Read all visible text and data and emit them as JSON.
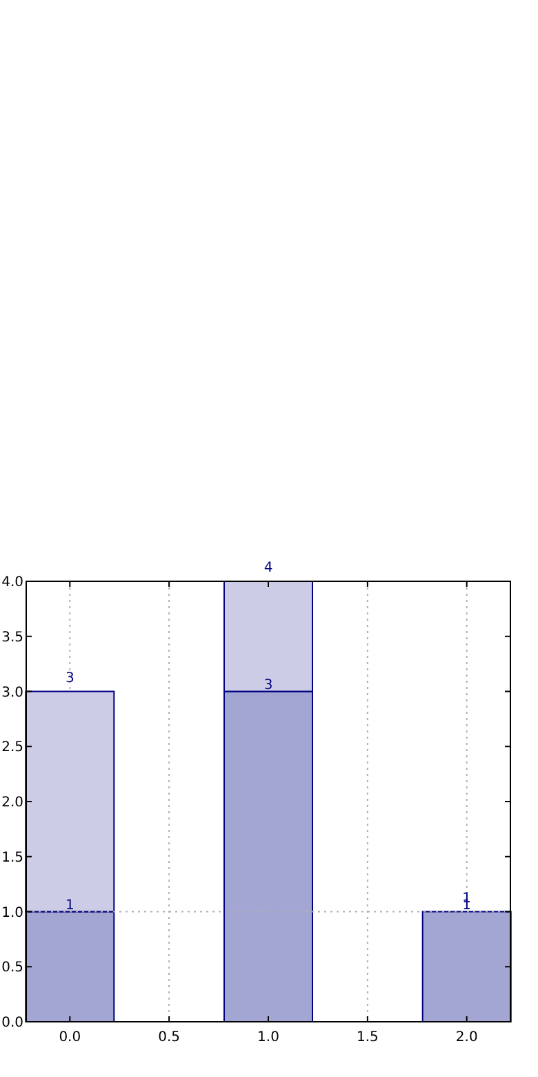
{
  "chart_data": {
    "type": "bar",
    "x": [
      0,
      1,
      2
    ],
    "stacked": true,
    "series": [
      {
        "color": "#a3a5d3",
        "values": [
          1,
          3,
          1
        ],
        "value_labels": [
          "1",
          "3",
          "1"
        ]
      },
      {
        "color": "#cccce6",
        "values": [
          2,
          1,
          0
        ]
      }
    ],
    "totals": [
      "3",
      "4",
      "1"
    ],
    "xlim": [
      -0.22,
      2.22
    ],
    "ylim": [
      0,
      4
    ],
    "xticks": [
      {
        "value": 0,
        "label": "0.0"
      },
      {
        "value": 0.5,
        "label": "0.5"
      },
      {
        "value": 1,
        "label": "1.0"
      },
      {
        "value": 1.5,
        "label": "1.5"
      },
      {
        "value": 2,
        "label": "2.0"
      }
    ],
    "yticks": [
      {
        "value": 0,
        "label": "0.0"
      },
      {
        "value": 0.5,
        "label": "0.5"
      },
      {
        "value": 1,
        "label": "1.0"
      },
      {
        "value": 1.5,
        "label": "1.5"
      },
      {
        "value": 2,
        "label": "2.0"
      },
      {
        "value": 2.5,
        "label": "2.5"
      },
      {
        "value": 3,
        "label": "3.0"
      },
      {
        "value": 3.5,
        "label": "3.5"
      },
      {
        "value": 4,
        "label": "4.0"
      }
    ],
    "grid": "x",
    "ref_lines": [
      {
        "axis": "y",
        "value": 1,
        "color": "#b0b0b0",
        "line_style": "dotted"
      }
    ]
  }
}
